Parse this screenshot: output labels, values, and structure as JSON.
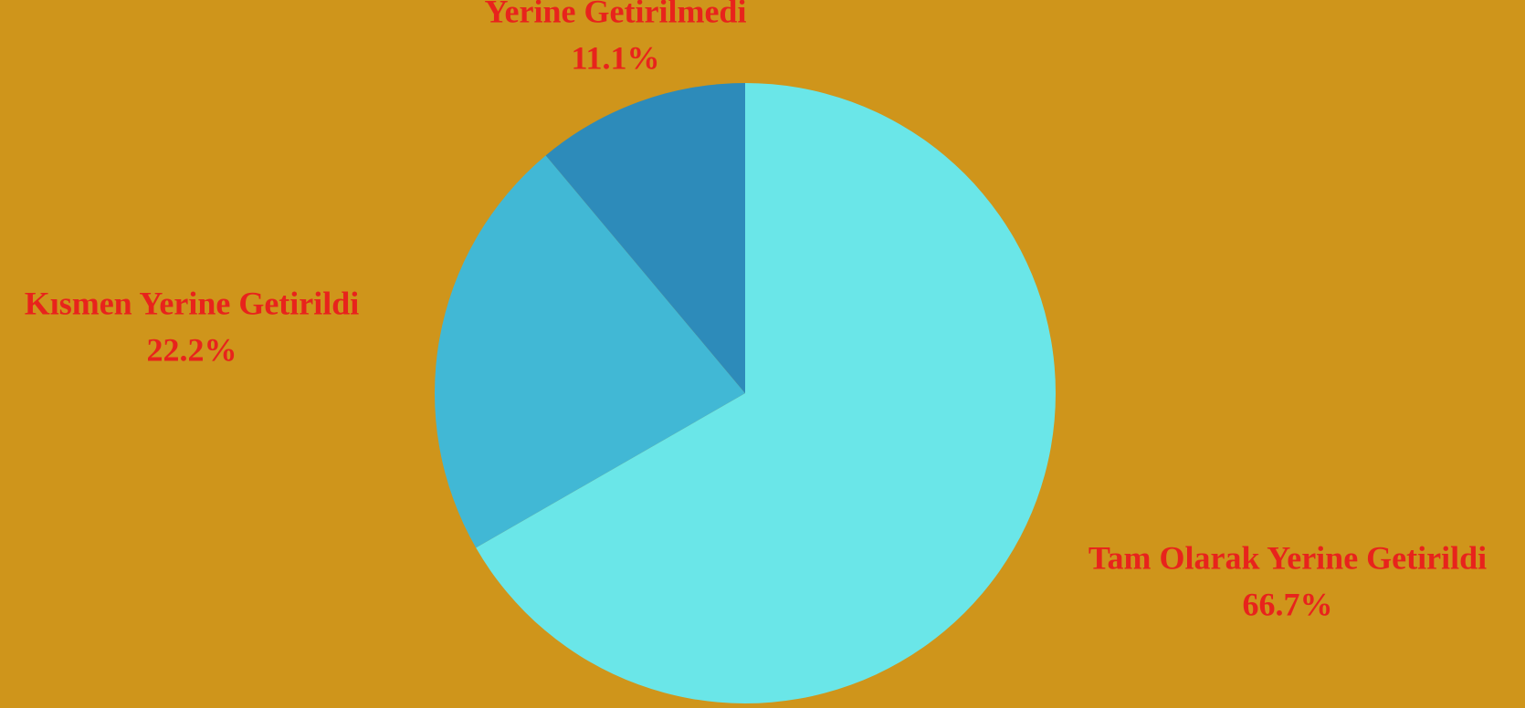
{
  "chart_data": {
    "type": "pie",
    "categories": [
      "Tam Olarak Yerine Getirildi",
      "Kısmen Yerine Getirildi",
      "Yerine Getirilmedi"
    ],
    "values": [
      66.7,
      22.2,
      11.1
    ],
    "value_labels": [
      "66.7%",
      "22.2%",
      "11.1%"
    ],
    "colors": [
      "#6ae6e8",
      "#41b8d5",
      "#2d8bba"
    ]
  }
}
